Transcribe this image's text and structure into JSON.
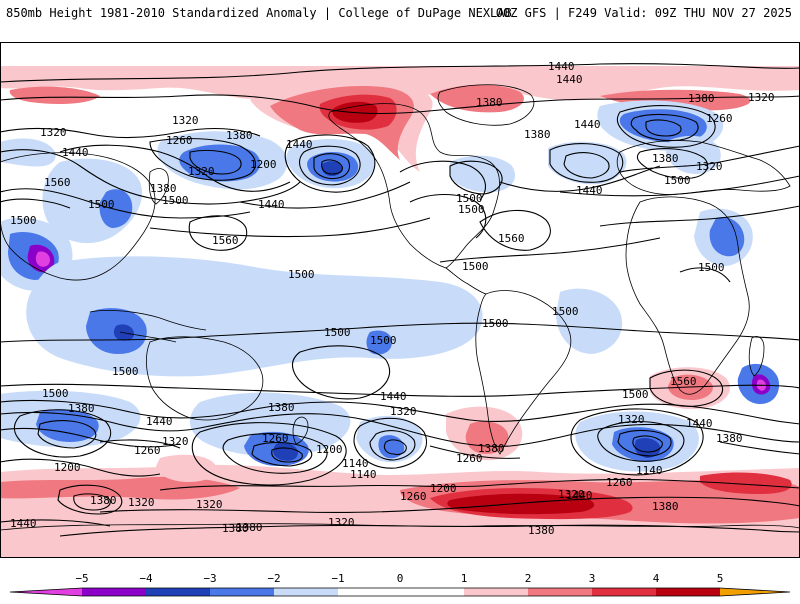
{
  "header": {
    "title_left": "850mb Height 1981-2010 Standardized Anomaly | College of DuPage NEXLAB",
    "title_right": "00Z GFS | F249 Valid: 09Z THU NOV 27 2025"
  },
  "colors": {
    "neg5": "#e040e0",
    "neg4": "#8a00c8",
    "neg3": "#2040b8",
    "neg2": "#4a78e8",
    "neg1": "#c8dcfa",
    "pos1": "#fac8cc",
    "pos2": "#f07880",
    "pos3": "#e03040",
    "pos4": "#b80010",
    "pos5": "#f0a000"
  },
  "colorbar": {
    "ticks": [
      "−5",
      "−4",
      "−3",
      "−2",
      "−1",
      "0",
      "1",
      "2",
      "3",
      "4",
      "5"
    ]
  },
  "contour_labels": {
    "l1440_top": "1440",
    "l1440_top2": "1440",
    "l1380_na": "1380",
    "l1380_na2": "1380",
    "l1440_atl": "1440",
    "l1380_eu": "1380",
    "l1320_eu": "1320",
    "l1260_eu": "1260",
    "l1380_eu2": "1380",
    "l1320_eu2": "1320",
    "l1500_eu": "1500",
    "l1440_eu2": "1440",
    "l1320_a": "1320",
    "l1320_b": "1320",
    "l1440_a": "1440",
    "l1560_a": "1560",
    "l1500_a": "1500",
    "l1380_a": "1380",
    "l1500_b": "1500",
    "l1260_a": "1260",
    "l1380_b": "1380",
    "l1320_c": "1320",
    "l1200_a": "1200",
    "l1500_c": "1500",
    "l1440_b": "1440",
    "l1560_b": "1560",
    "l1500_pac": "1500",
    "l1500_pac2": "1500",
    "l1440_us": "1440",
    "l1500_us": "1500",
    "l1560_atl": "1560",
    "l1500_mid": "1500",
    "l1500_sam": "1500",
    "l1500_spac": "1500",
    "l1500_spac2": "1500",
    "l1500_af": "1500",
    "l1560_saf": "1560",
    "l1500_sio": "1500",
    "l1500_satl": "1500",
    "l1500_w": "1500",
    "l1500_sw": "1500",
    "l1380_s1": "1380",
    "l1440_s1": "1440",
    "l1320_s1": "1320",
    "l1260_s1": "1260",
    "l1200_s1": "1200",
    "l1380_s2": "1380",
    "l1440_s2": "1440",
    "l1320_s2": "1320",
    "l1260_s2": "1260",
    "l1200_s2": "1200",
    "l1140_s2": "1140",
    "l1140_s3": "1140",
    "l1260_s3": "1260",
    "l1380_s3": "1380",
    "l1200_s3": "1200",
    "l1260_s4": "1260",
    "l1320_s4": "1320",
    "l1140_s4": "1140",
    "l1260_s5": "1260",
    "l1440_s5": "1440",
    "l1380_s5": "1380",
    "l1320_s6": "1320",
    "l1380_s6": "1380",
    "l1380_s7": "1380",
    "l1320_s7": "1320",
    "l1320_s8": "1320",
    "l1380_s8": "1380",
    "l1440_s9": "1440",
    "l1380_s9": "1380",
    "l1440_bl": "1440",
    "l1380_bl": "1380",
    "l1320_bl": "1320"
  }
}
